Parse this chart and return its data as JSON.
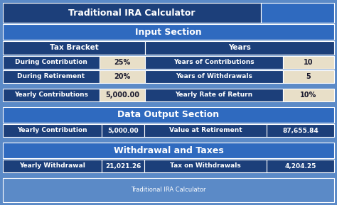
{
  "title": "Traditional IRA Calculator",
  "section1": "Input Section",
  "section2": "Data Output Section",
  "section3": "Withdrawal and Taxes",
  "col1_header": "Tax Bracket",
  "col2_header": "Years",
  "row1_label": "During Contribution",
  "row1_val": "25%",
  "row2_label": "During Retirement",
  "row2_val": "20%",
  "row3_label": "Years of Contributions",
  "row3_val": "10",
  "row4_label": "Years of Withdrawals",
  "row4_val": "5",
  "row5_label": "Yearly Contributions",
  "row5_val": "5,000.00",
  "row5b_label": "Yearly Rate of Return",
  "row5b_val": "10%",
  "out1_label": "Yearly Contribution",
  "out1_val": "5,000.00",
  "out2_label": "Value at Retirement",
  "out2_val": "87,655.84",
  "out3_label": "Yearly Withdrawal",
  "out3_val": "21,021.26",
  "out4_label": "Tax on Withdrawals",
  "out4_val": "4,204.25",
  "footer": "Traditional IRA Calculator",
  "bg_outer": "#5b8ac7",
  "bg_dark": "#1c3f7a",
  "bg_medium": "#2558a8",
  "bg_section": "#2f6abf",
  "cell_beige": "#e8dfc8",
  "text_white": "#ffffff",
  "text_dark": "#1a1a2e",
  "border_color": "#ffffff"
}
